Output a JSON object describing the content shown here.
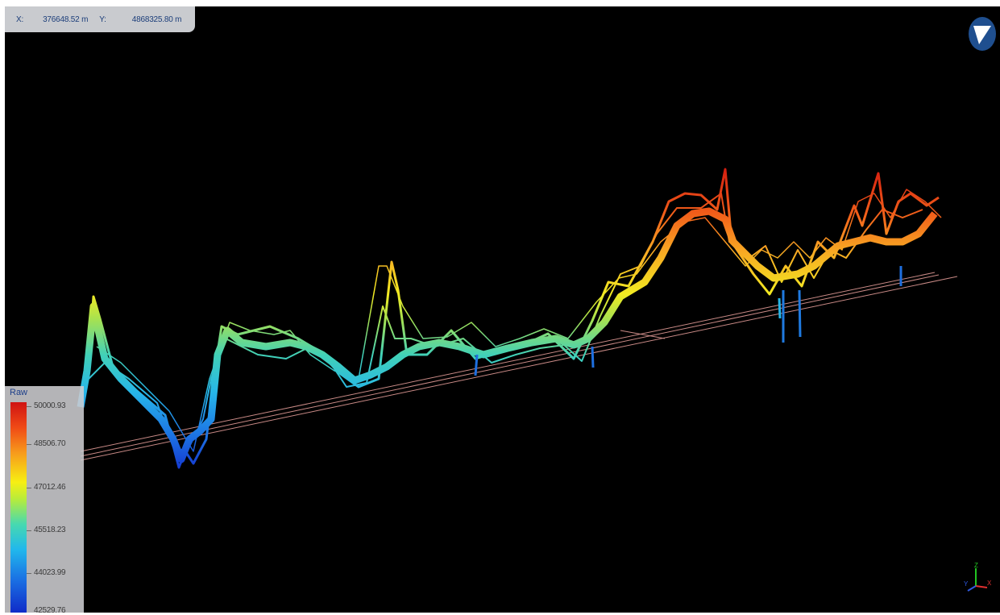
{
  "coordinates": {
    "x_label": "X:",
    "x_value": "376648.52 m",
    "y_label": "Y:",
    "y_value": "4868325.80 m"
  },
  "legend": {
    "title": "Raw",
    "labels": [
      "50000.93",
      "48506.70",
      "47012.46",
      "45518.23",
      "44023.99",
      "42529.76"
    ]
  },
  "axis_gizmo": {
    "z": "Z",
    "x": "X",
    "y": "Y"
  },
  "icons": {
    "compass": "north-arrow-icon"
  },
  "colors": {
    "viewport_background": "#000000",
    "flight_line": "#c98a86",
    "compass_fill": "#1f4f8f",
    "panel_gray": "#c9cbcf"
  }
}
